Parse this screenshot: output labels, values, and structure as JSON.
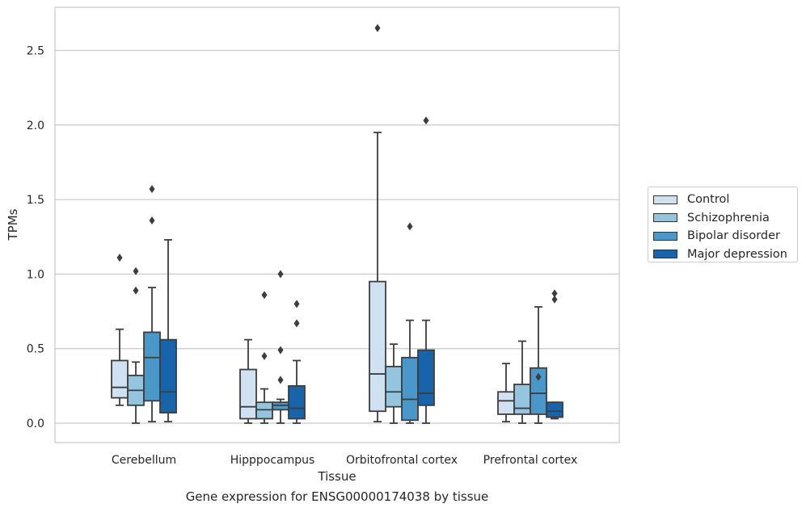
{
  "caption": "Gene expression for ENSG00000174038 by tissue",
  "chart_data": {
    "type": "box",
    "xlabel": "Tissue",
    "ylabel": "TPMs",
    "ylim": [
      -0.13,
      2.8
    ],
    "yticks": [
      0.0,
      0.5,
      1.0,
      1.5,
      2.0,
      2.5
    ],
    "ytick_labels": [
      "0.0",
      "0.5",
      "1.0",
      "1.5",
      "2.0",
      "2.5"
    ],
    "grid": "horizontal",
    "legend_position": "right",
    "categories": [
      "Cerebellum",
      "Hipppocampus",
      "Orbitofrontal cortex",
      "Prefrontal cortex"
    ],
    "series": [
      {
        "name": "Control",
        "color": "#d0e1f2",
        "boxes": [
          {
            "whislo": 0.12,
            "q1": 0.17,
            "med": 0.24,
            "q3": 0.42,
            "whishi": 0.63,
            "fliers": [
              1.11
            ]
          },
          {
            "whislo": 0.0,
            "q1": 0.03,
            "med": 0.11,
            "q3": 0.36,
            "whishi": 0.56,
            "fliers": []
          },
          {
            "whislo": 0.01,
            "q1": 0.08,
            "med": 0.33,
            "q3": 0.95,
            "whishi": 1.95,
            "fliers": [
              2.65
            ]
          },
          {
            "whislo": 0.01,
            "q1": 0.06,
            "med": 0.15,
            "q3": 0.21,
            "whishi": 0.4,
            "fliers": []
          }
        ]
      },
      {
        "name": "Schizophrenia",
        "color": "#94c4df",
        "boxes": [
          {
            "whislo": 0.0,
            "q1": 0.12,
            "med": 0.22,
            "q3": 0.32,
            "whishi": 0.41,
            "fliers": [
              1.02,
              0.89
            ]
          },
          {
            "whislo": 0.0,
            "q1": 0.03,
            "med": 0.09,
            "q3": 0.14,
            "whishi": 0.23,
            "fliers": [
              0.86,
              0.45
            ]
          },
          {
            "whislo": 0.0,
            "q1": 0.11,
            "med": 0.21,
            "q3": 0.38,
            "whishi": 0.53,
            "fliers": []
          },
          {
            "whislo": 0.0,
            "q1": 0.06,
            "med": 0.1,
            "q3": 0.26,
            "whishi": 0.55,
            "fliers": []
          }
        ]
      },
      {
        "name": "Bipolar disorder",
        "color": "#4a98c9",
        "boxes": [
          {
            "whislo": 0.01,
            "q1": 0.15,
            "med": 0.44,
            "q3": 0.61,
            "whishi": 0.91,
            "fliers": [
              1.57,
              1.36
            ]
          },
          {
            "whislo": 0.0,
            "q1": 0.09,
            "med": 0.12,
            "q3": 0.14,
            "whishi": 0.16,
            "fliers": [
              1.0,
              0.49,
              0.29
            ]
          },
          {
            "whislo": 0.0,
            "q1": 0.02,
            "med": 0.16,
            "q3": 0.44,
            "whishi": 0.69,
            "fliers": [
              1.32
            ]
          },
          {
            "whislo": 0.0,
            "q1": 0.06,
            "med": 0.2,
            "q3": 0.37,
            "whishi": 0.78,
            "fliers": [
              0.31
            ]
          }
        ]
      },
      {
        "name": "Major depression",
        "color": "#1764ab",
        "boxes": [
          {
            "whislo": 0.01,
            "q1": 0.07,
            "med": 0.21,
            "q3": 0.56,
            "whishi": 1.23,
            "fliers": []
          },
          {
            "whislo": 0.0,
            "q1": 0.03,
            "med": 0.1,
            "q3": 0.25,
            "whishi": 0.42,
            "fliers": [
              0.8,
              0.67
            ]
          },
          {
            "whislo": 0.0,
            "q1": 0.12,
            "med": 0.2,
            "q3": 0.49,
            "whishi": 0.69,
            "fliers": [
              2.03
            ]
          },
          {
            "whislo": 0.03,
            "q1": 0.04,
            "med": 0.08,
            "q3": 0.14,
            "whishi": 0.14,
            "fliers": [
              0.87,
              0.83
            ]
          }
        ]
      }
    ]
  }
}
